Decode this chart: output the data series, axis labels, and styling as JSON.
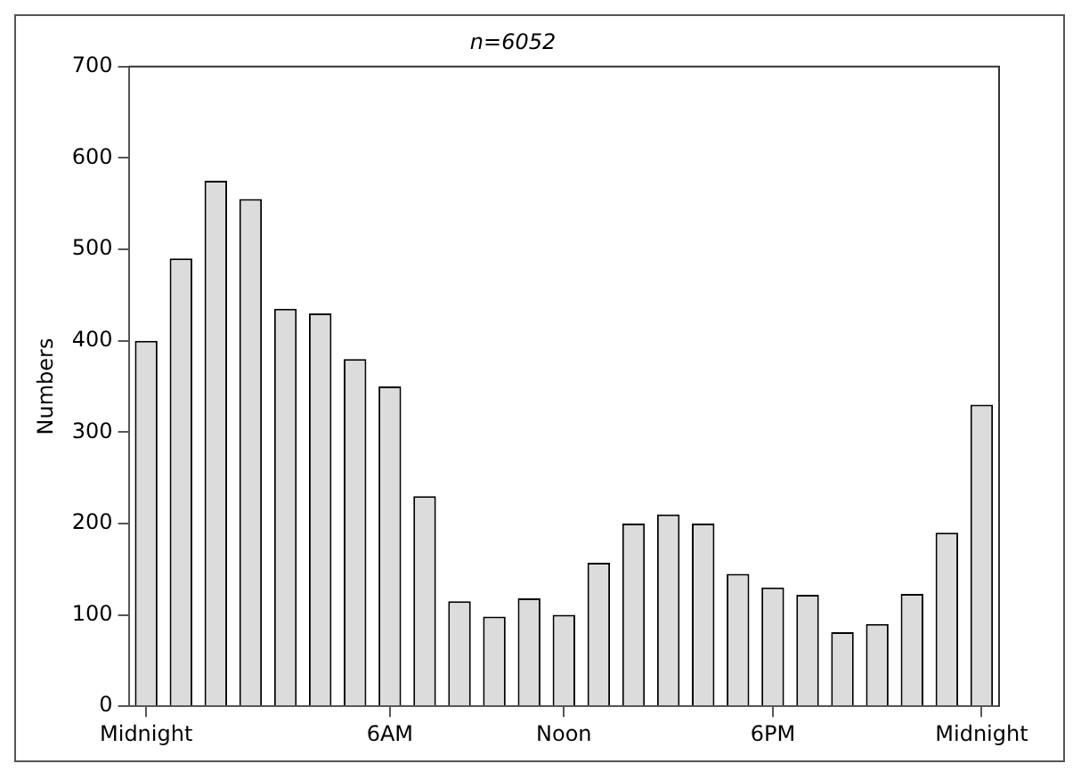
{
  "chart_data": {
    "type": "bar",
    "title": "n=6052",
    "ylabel": "Numbers",
    "categories": [
      "Midnight",
      null,
      null,
      null,
      null,
      null,
      null,
      "6AM",
      null,
      null,
      null,
      null,
      "Noon",
      null,
      null,
      null,
      null,
      null,
      "6PM",
      null,
      null,
      null,
      null,
      null,
      "Midnight"
    ],
    "values": [
      400,
      490,
      575,
      555,
      435,
      430,
      380,
      350,
      230,
      115,
      98,
      118,
      100,
      157,
      200,
      210,
      200,
      145,
      130,
      122,
      81,
      90,
      123,
      190,
      330
    ],
    "color": "#dcdcdc",
    "ylim": [
      0,
      700
    ],
    "yticks": [
      0,
      100,
      200,
      300,
      400,
      500,
      600,
      700
    ],
    "grid": false,
    "legend": false
  }
}
